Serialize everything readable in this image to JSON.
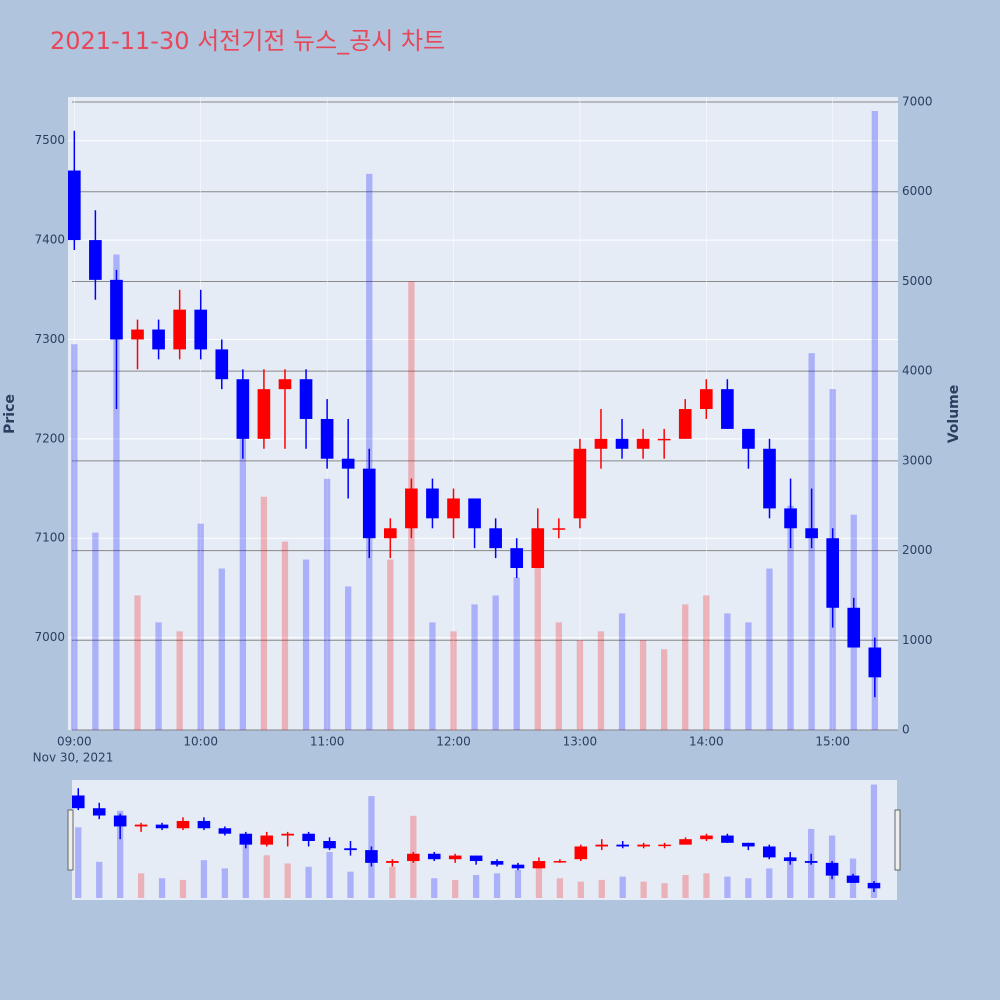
{
  "chart_data": {
    "type": "candlestick",
    "title": "2021-11-30 서전기전 뉴스_공시 차트",
    "y_label": "Price",
    "y2_label": "Volume",
    "date_label": "Nov 30, 2021",
    "x": [
      "09:00",
      "09:10",
      "09:20",
      "09:30",
      "09:40",
      "09:50",
      "10:00",
      "10:10",
      "10:20",
      "10:30",
      "10:40",
      "10:50",
      "11:00",
      "11:10",
      "11:20",
      "11:30",
      "11:40",
      "11:50",
      "12:00",
      "12:10",
      "12:20",
      "12:30",
      "12:40",
      "12:50",
      "13:00",
      "13:10",
      "13:20",
      "13:30",
      "13:40",
      "13:50",
      "14:00",
      "14:10",
      "14:20",
      "14:30",
      "14:40",
      "14:50",
      "15:00",
      "15:10",
      "15:20"
    ],
    "open": [
      7470,
      7400,
      7360,
      7300,
      7310,
      7290,
      7330,
      7290,
      7260,
      7200,
      7250,
      7260,
      7220,
      7180,
      7170,
      7100,
      7110,
      7150,
      7120,
      7140,
      7110,
      7090,
      7070,
      7110,
      7120,
      7190,
      7200,
      7190,
      7200,
      7200,
      7230,
      7250,
      7210,
      7190,
      7130,
      7110,
      7100,
      7030,
      6990
    ],
    "high": [
      7510,
      7430,
      7370,
      7320,
      7320,
      7350,
      7350,
      7300,
      7270,
      7270,
      7270,
      7270,
      7240,
      7220,
      7190,
      7120,
      7160,
      7160,
      7150,
      7140,
      7120,
      7100,
      7130,
      7120,
      7200,
      7230,
      7220,
      7210,
      7210,
      7240,
      7260,
      7260,
      7210,
      7200,
      7160,
      7150,
      7110,
      7040,
      7000
    ],
    "low": [
      7390,
      7340,
      7230,
      7270,
      7280,
      7280,
      7280,
      7250,
      7180,
      7190,
      7190,
      7190,
      7170,
      7140,
      7080,
      7080,
      7100,
      7110,
      7100,
      7090,
      7080,
      7060,
      7070,
      7100,
      7110,
      7170,
      7180,
      7180,
      7180,
      7200,
      7220,
      7210,
      7170,
      7120,
      7090,
      7090,
      7010,
      6990,
      6940
    ],
    "close": [
      7400,
      7360,
      7300,
      7310,
      7290,
      7330,
      7290,
      7260,
      7200,
      7250,
      7260,
      7220,
      7180,
      7170,
      7100,
      7110,
      7150,
      7120,
      7140,
      7110,
      7090,
      7070,
      7110,
      7110,
      7190,
      7200,
      7190,
      7200,
      7200,
      7230,
      7250,
      7210,
      7190,
      7130,
      7110,
      7100,
      7030,
      6990,
      6960
    ],
    "volume": [
      4300,
      2200,
      5300,
      1500,
      1200,
      1100,
      2300,
      1800,
      3800,
      2600,
      2100,
      1900,
      2800,
      1600,
      6200,
      1900,
      5000,
      1200,
      1100,
      1400,
      1500,
      1700,
      1900,
      1200,
      1000,
      1100,
      1300,
      1000,
      900,
      1400,
      1500,
      1300,
      1200,
      1800,
      2500,
      4200,
      3800,
      2400,
      6900
    ],
    "xlim": [
      "08:57",
      "15:31"
    ],
    "xticks": [
      "09:00",
      "10:00",
      "11:00",
      "12:00",
      "13:00",
      "14:00",
      "15:00"
    ],
    "ylim": [
      6907,
      7544
    ],
    "yticks": [
      7000,
      7100,
      7200,
      7300,
      7400,
      7500
    ],
    "y2lim": [
      0,
      7056
    ],
    "y2ticks": [
      0,
      1000,
      2000,
      3000,
      4000,
      5000,
      6000,
      7000
    ],
    "increasing_color": "#ff0000",
    "decreasing_color": "#0000ff",
    "grid": true
  }
}
